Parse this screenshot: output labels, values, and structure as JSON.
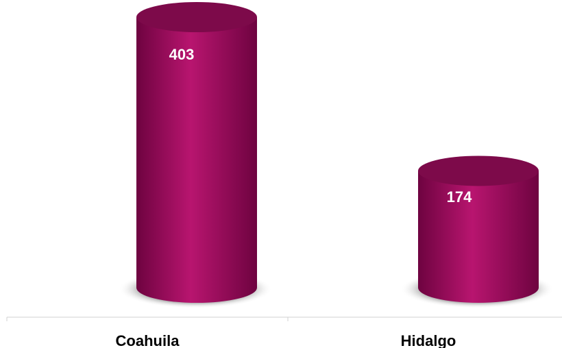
{
  "chart_data": {
    "type": "bar",
    "style": "3d-cylinder",
    "categories": [
      "Coahuila",
      "Hidalgo"
    ],
    "values": [
      403,
      174
    ],
    "title": "",
    "xlabel": "",
    "ylabel": "",
    "data_labels": [
      "403",
      "174"
    ],
    "grid": false,
    "legend": "none",
    "colors": {
      "bar_base": "#a30a5f",
      "bar_light": "#b8156f",
      "bar_dark": "#6e0340",
      "bar_top": "#7d0a4a",
      "shadow": "#5a5a5a",
      "axis": "#d0d0d0"
    }
  }
}
